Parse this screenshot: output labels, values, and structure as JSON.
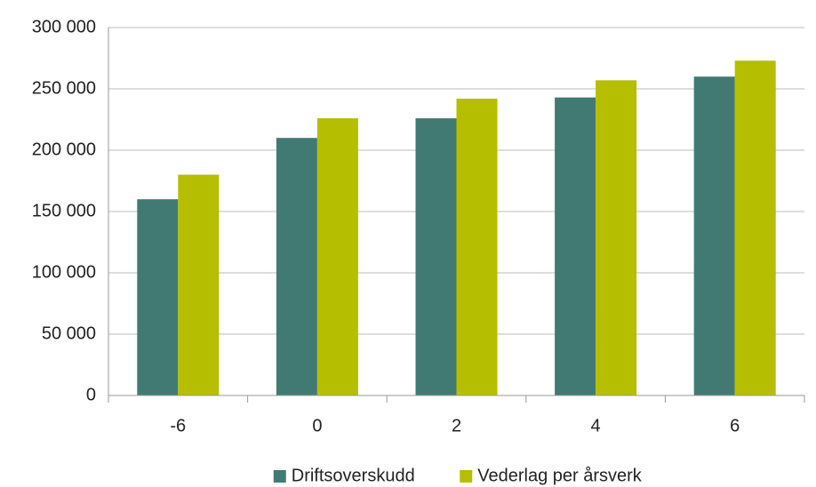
{
  "chart_data": {
    "type": "bar",
    "categories": [
      "-6",
      "0",
      "2",
      "4",
      "6"
    ],
    "series": [
      {
        "name": "Driftsoverskudd",
        "color": "#417a72",
        "values": [
          160000,
          210000,
          226000,
          243000,
          260000
        ]
      },
      {
        "name": "Vederlag per årsverk",
        "color": "#b5bf00",
        "values": [
          180000,
          226000,
          242000,
          257000,
          273000
        ]
      }
    ],
    "ylim": [
      0,
      300000
    ],
    "yticks": [
      0,
      {
        "value": 50000,
        "label": "50 000"
      },
      {
        "value": 100000,
        "label": "100 000"
      },
      {
        "value": 150000,
        "label": "150 000"
      },
      {
        "value": 200000,
        "label": "200 000"
      },
      {
        "value": 250000,
        "label": "250 000"
      },
      {
        "value": 300000,
        "label": "300 000"
      }
    ],
    "grid": true,
    "legend": "bottom"
  }
}
